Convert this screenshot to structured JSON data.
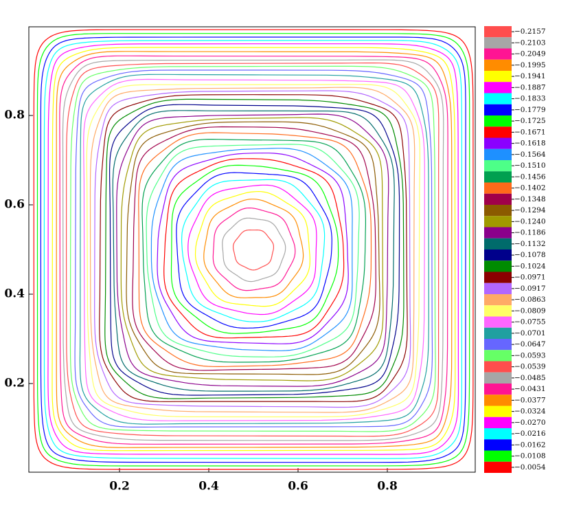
{
  "chart_data": {
    "type": "contour",
    "xlim": [
      0,
      1
    ],
    "ylim": [
      0,
      1
    ],
    "xticks": [
      0.2,
      0.4,
      0.6,
      0.8
    ],
    "yticks": [
      0.2,
      0.4,
      0.6,
      0.8
    ],
    "levels": [
      {
        "value": -0.2157,
        "label": "−0.2157"
      },
      {
        "value": -0.2103,
        "label": "−0.2103"
      },
      {
        "value": -0.2049,
        "label": "−0.2049"
      },
      {
        "value": -0.1995,
        "label": "−0.1995"
      },
      {
        "value": -0.1941,
        "label": "−0.1941"
      },
      {
        "value": -0.1887,
        "label": "−0.1887"
      },
      {
        "value": -0.1833,
        "label": "−0.1833"
      },
      {
        "value": -0.1779,
        "label": "−0.1779"
      },
      {
        "value": -0.1725,
        "label": "−0.1725"
      },
      {
        "value": -0.1671,
        "label": "−0.1671"
      },
      {
        "value": -0.1618,
        "label": "−0.1618"
      },
      {
        "value": -0.1564,
        "label": "−0.1564"
      },
      {
        "value": -0.151,
        "label": "−0.1510"
      },
      {
        "value": -0.1456,
        "label": "−0.1456"
      },
      {
        "value": -0.1402,
        "label": "−0.1402"
      },
      {
        "value": -0.1348,
        "label": "−0.1348"
      },
      {
        "value": -0.1294,
        "label": "−0.1294"
      },
      {
        "value": -0.124,
        "label": "−0.1240"
      },
      {
        "value": -0.1186,
        "label": "−0.1186"
      },
      {
        "value": -0.1132,
        "label": "−0.1132"
      },
      {
        "value": -0.1078,
        "label": "−0.1078"
      },
      {
        "value": -0.1024,
        "label": "−0.1024"
      },
      {
        "value": -0.0971,
        "label": "−0.0971"
      },
      {
        "value": -0.0917,
        "label": "−0.0917"
      },
      {
        "value": -0.0863,
        "label": "−0.0863"
      },
      {
        "value": -0.0809,
        "label": "−0.0809"
      },
      {
        "value": -0.0755,
        "label": "−0.0755"
      },
      {
        "value": -0.0701,
        "label": "−0.0701"
      },
      {
        "value": -0.0647,
        "label": "−0.0647"
      },
      {
        "value": -0.0593,
        "label": "−0.0593"
      },
      {
        "value": -0.0539,
        "label": "−0.0539"
      },
      {
        "value": -0.0485,
        "label": "−0.0485"
      },
      {
        "value": -0.0431,
        "label": "−0.0431"
      },
      {
        "value": -0.0377,
        "label": "−0.0377"
      },
      {
        "value": -0.0324,
        "label": "−0.0324"
      },
      {
        "value": -0.027,
        "label": "−0.0270"
      },
      {
        "value": -0.0216,
        "label": "−0.0216"
      },
      {
        "value": -0.0162,
        "label": "−0.0162"
      },
      {
        "value": -0.0108,
        "label": "−0.0108"
      },
      {
        "value": -0.0054,
        "label": "−0.0054"
      }
    ],
    "colors": [
      "#ff4d4d",
      "#a6a6a6",
      "#ff1493",
      "#ff8c00",
      "#ffff00",
      "#ff00ff",
      "#00ffff",
      "#0000ff",
      "#00ff00",
      "#ff0000",
      "#8b00ff",
      "#1e90ff",
      "#4dff88",
      "#00a050",
      "#ff6a1a",
      "#a0004a",
      "#8b5a00",
      "#a09a00",
      "#8b008b",
      "#006b6b",
      "#00008b",
      "#008b00",
      "#8b0000",
      "#b266ff",
      "#ffaa66",
      "#ffff66",
      "#ff66ff",
      "#20a0a0",
      "#6666ff",
      "#66ff66",
      "#ff4d4d",
      "#a6a6a6",
      "#ff1493",
      "#ff8c00",
      "#ffff00",
      "#ff00ff",
      "#00ffff",
      "#0000ff",
      "#00ff00",
      "#ff0000"
    ]
  }
}
